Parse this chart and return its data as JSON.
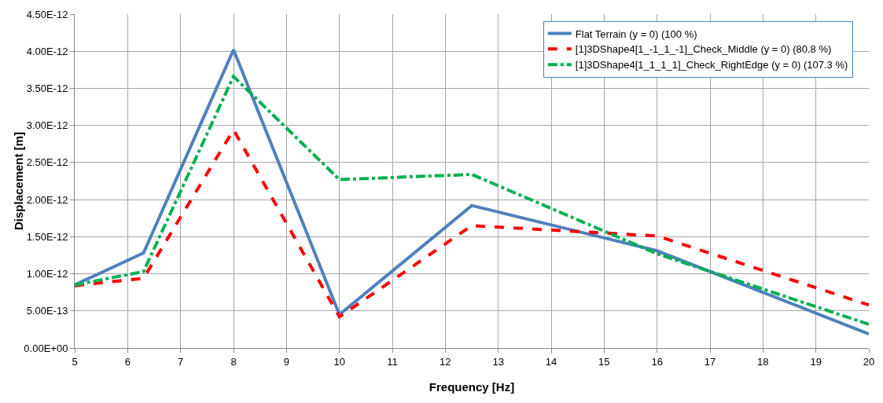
{
  "chart_data": {
    "type": "line",
    "xlabel": "Frequency [Hz]",
    "ylabel": "Displacement [m]",
    "x": [
      5,
      6.3,
      8,
      10,
      12.5,
      16,
      20
    ],
    "series": [
      {
        "name": "Flat Terrain (y = 0) (100 %)",
        "color": "#4f81bd",
        "line_style": "solid",
        "values": [
          8.5e-13,
          1.28e-12,
          4.02e-12,
          4.5e-13,
          1.92e-12,
          1.31e-12,
          1.9e-13
        ]
      },
      {
        "name": "[1]3DShape4[1_-1_1_-1]_Check_Middle (y = 0) (80.8 %)",
        "color": "#ff0000",
        "line_style": "dashed",
        "values": [
          8.4e-13,
          9.4e-13,
          2.94e-12,
          4.2e-13,
          1.65e-12,
          1.51e-12,
          5.8e-13
        ]
      },
      {
        "name": "[1]3DShape4[1_1_1_1]_Check_RightEdge (y = 0) (107.3 %)",
        "color": "#00b050",
        "line_style": "dashdot",
        "values": [
          8.5e-13,
          1.03e-12,
          3.66e-12,
          2.27e-12,
          2.34e-12,
          1.27e-12,
          3.2e-13
        ]
      }
    ],
    "xlim": [
      5,
      20
    ],
    "xticks": [
      5,
      6,
      7,
      8,
      9,
      10,
      11,
      12,
      13,
      14,
      15,
      16,
      17,
      18,
      19,
      20
    ],
    "ylim": [
      0,
      4.5e-12
    ],
    "yticks": [
      {
        "value": 0,
        "label": "0.00E+00"
      },
      {
        "value": 5e-13,
        "label": "5.00E-13"
      },
      {
        "value": 1e-12,
        "label": "1.00E-12"
      },
      {
        "value": 1.5e-12,
        "label": "1.50E-12"
      },
      {
        "value": 2e-12,
        "label": "2.00E-12"
      },
      {
        "value": 2.5e-12,
        "label": "2.50E-12"
      },
      {
        "value": 3e-12,
        "label": "3.00E-12"
      },
      {
        "value": 3.5e-12,
        "label": "3.50E-12"
      },
      {
        "value": 4e-12,
        "label": "4.00E-12"
      },
      {
        "value": 4.5e-12,
        "label": "4.50E-12"
      }
    ],
    "grid": true,
    "legend": "top right",
    "marker": "none"
  }
}
